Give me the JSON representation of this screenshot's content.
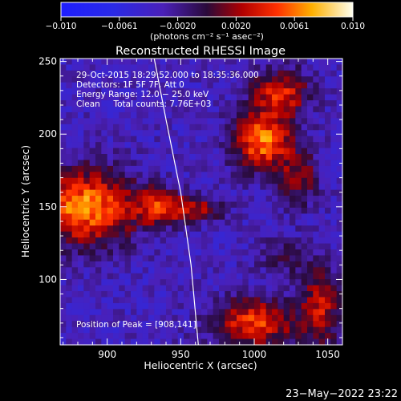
{
  "colorbar": {
    "ticks": [
      "−0.010",
      "−0.0061",
      "−0.0020",
      "0.0020",
      "0.0061",
      "0.010"
    ],
    "unit_label": "(photons cm⁻² s⁻¹ asec⁻²)",
    "range": [
      -0.01,
      0.01
    ],
    "colormap": "blue-purple-red-yellow-white"
  },
  "chart_data": {
    "type": "heatmap",
    "title": "Reconstructed RHESSI Image",
    "xlabel": "Heliocentric X (arcsec)",
    "ylabel": "Heliocentric Y (arcsec)",
    "xlim": [
      868,
      1060
    ],
    "ylim": [
      55,
      252
    ],
    "x_ticks": [
      900,
      950,
      1000,
      1050
    ],
    "y_ticks": [
      100,
      150,
      200,
      250
    ],
    "x_tick_labels": [
      "900",
      "950",
      "1000",
      "1050"
    ],
    "y_tick_labels": [
      "100",
      "150",
      "200",
      "250"
    ],
    "annotations": [
      "29-Oct-2015 18:29:52.000 to 18:35:36.000",
      "Detectors: 1F 5F 7F, Att 0",
      "Energy Range: 12.0 − 25.0 keV",
      "Clean     Total counts: 7.76E+03"
    ],
    "peak_label": "Position of Peak = [908,141]",
    "peak_position": [
      908,
      141
    ],
    "limb_curve": [
      [
        932,
        252
      ],
      [
        940,
        210
      ],
      [
        950,
        160
      ],
      [
        957,
        110
      ],
      [
        962,
        55
      ]
    ],
    "sources": [
      {
        "x": 885,
        "y": 150,
        "sx": 24,
        "sy": 18,
        "amp": 0.01
      },
      {
        "x": 960,
        "y": 148,
        "sx": 14,
        "sy": 6,
        "amp": 0.0055
      },
      {
        "x": 935,
        "y": 150,
        "sx": 12,
        "sy": 9,
        "amp": 0.006
      },
      {
        "x": 1005,
        "y": 195,
        "sx": 14,
        "sy": 14,
        "amp": 0.0095
      },
      {
        "x": 1018,
        "y": 228,
        "sx": 14,
        "sy": 12,
        "amp": 0.007
      },
      {
        "x": 1030,
        "y": 170,
        "sx": 10,
        "sy": 14,
        "amp": 0.005
      },
      {
        "x": 1000,
        "y": 70,
        "sx": 20,
        "sy": 12,
        "amp": 0.008
      },
      {
        "x": 1045,
        "y": 80,
        "sx": 10,
        "sy": 20,
        "amp": 0.006
      },
      {
        "x": 1020,
        "y": 115,
        "sx": 12,
        "sy": 10,
        "amp": 0.003
      }
    ],
    "background_level": -0.0035
  },
  "footer": {
    "date": "23−May−2022 23:22"
  }
}
